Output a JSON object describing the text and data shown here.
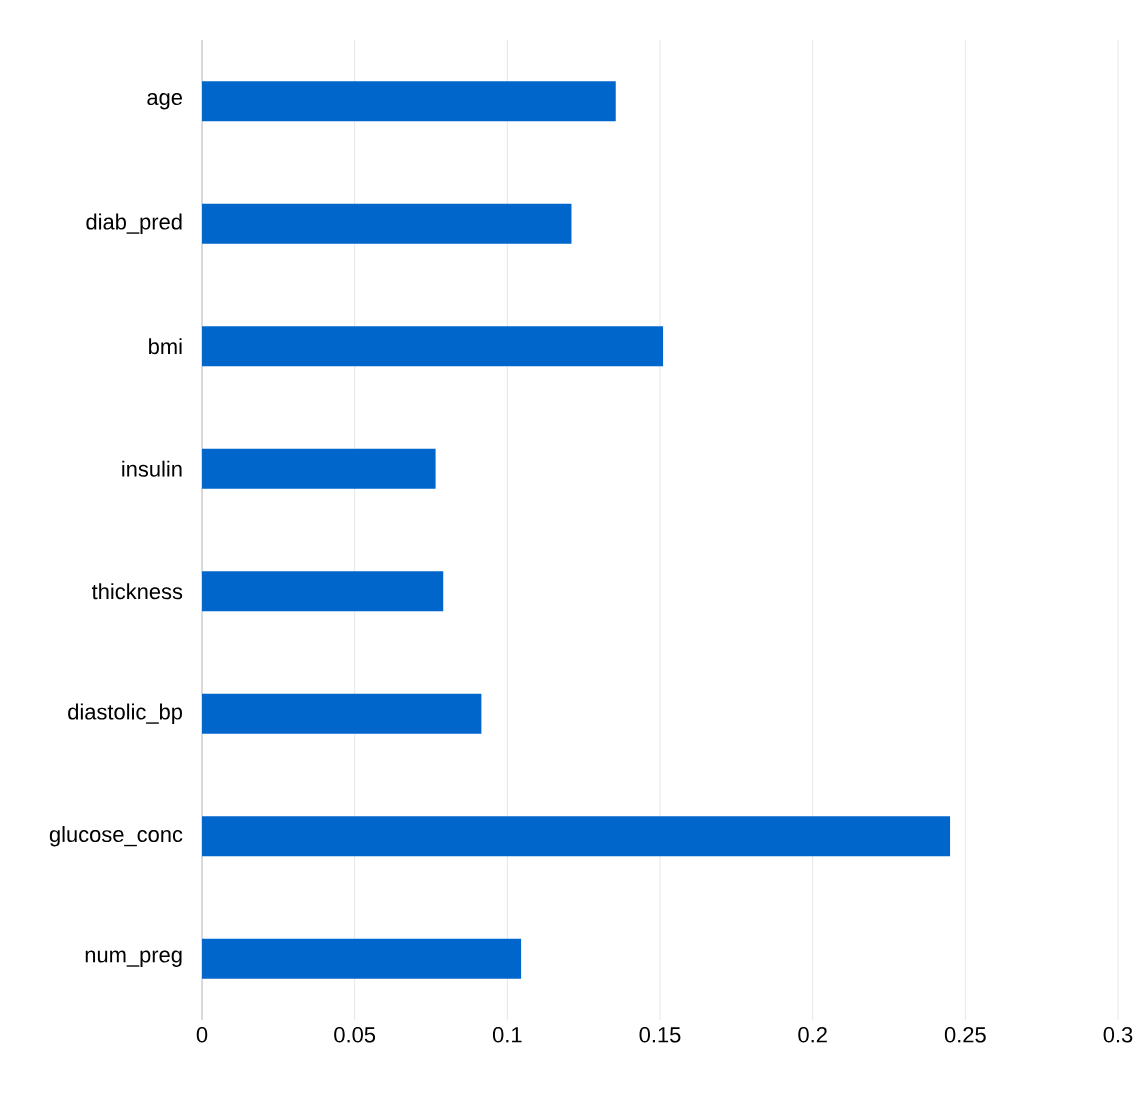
{
  "chart_data": {
    "type": "bar",
    "orientation": "horizontal",
    "categories": [
      "age",
      "diab_pred",
      "bmi",
      "insulin",
      "thickness",
      "diastolic_bp",
      "glucose_conc",
      "num_preg"
    ],
    "values": [
      0.1355,
      0.121,
      0.151,
      0.0765,
      0.079,
      0.0915,
      0.245,
      0.1045
    ],
    "color": "#0066cc",
    "xlim": [
      0,
      0.3
    ],
    "xticks": [
      0,
      0.05,
      0.1,
      0.15,
      0.2,
      0.25,
      0.3
    ],
    "grid": "x"
  }
}
